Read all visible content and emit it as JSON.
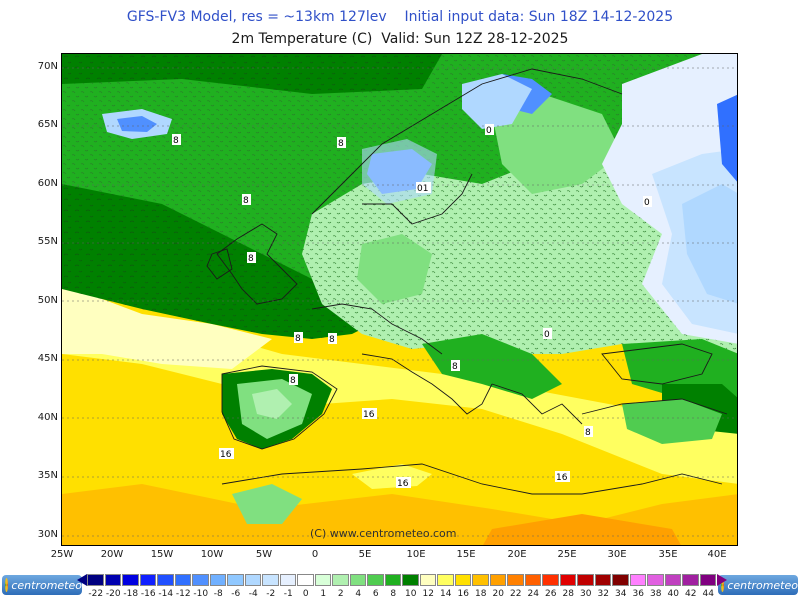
{
  "header": {
    "title_line1": "GFS-FV3 Model, res = ~13km 127lev    Initial input data: Sun 18Z 14-12-2025",
    "title_line2": "2m Temperature (C)  Valid: Sun 12Z 28-12-2025"
  },
  "axes": {
    "lat_labels": [
      "70N",
      "65N",
      "60N",
      "55N",
      "50N",
      "45N",
      "40N",
      "35N",
      "30N"
    ],
    "lon_labels": [
      "25W",
      "20W",
      "15W",
      "10W",
      "5W",
      "0",
      "5E",
      "10E",
      "15E",
      "20E",
      "25E",
      "30E",
      "35E",
      "40E"
    ]
  },
  "watermark": "(C)  www.centrometeo.com",
  "logos": {
    "brand": "centrometeo"
  },
  "contour_labels": [
    "8",
    "8",
    "8",
    "0",
    "01",
    "0",
    "8",
    "8",
    "8",
    "8",
    "0",
    "16",
    "16",
    "16",
    "16",
    "8",
    "8"
  ],
  "legend": {
    "labels": [
      "-22",
      "-20",
      "-18",
      "-16",
      "-14",
      "-12",
      "-10",
      "-8",
      "-6",
      "-4",
      "-2",
      "-1",
      "0",
      "1",
      "2",
      "4",
      "6",
      "8",
      "10",
      "12",
      "14",
      "16",
      "18",
      "20",
      "22",
      "24",
      "26",
      "28",
      "30",
      "32",
      "34",
      "36",
      "38",
      "40",
      "42",
      "44"
    ],
    "colors": [
      "#000080",
      "#0000b0",
      "#0000e0",
      "#1020ff",
      "#2050ff",
      "#3070ff",
      "#5090ff",
      "#70b0ff",
      "#90c8ff",
      "#b0d8ff",
      "#c8e4ff",
      "#e6f0ff",
      "#ffffff",
      "#d8ffd8",
      "#b0f0b0",
      "#80e080",
      "#50cc50",
      "#20b020",
      "#008000",
      "#ffffc0",
      "#ffff60",
      "#ffe000",
      "#ffc000",
      "#ffa000",
      "#ff8000",
      "#ff6000",
      "#ff3000",
      "#e00000",
      "#c00000",
      "#a00000",
      "#800000",
      "#ff80ff",
      "#e060e0",
      "#c040c0",
      "#a020a0",
      "#800080"
    ]
  }
}
